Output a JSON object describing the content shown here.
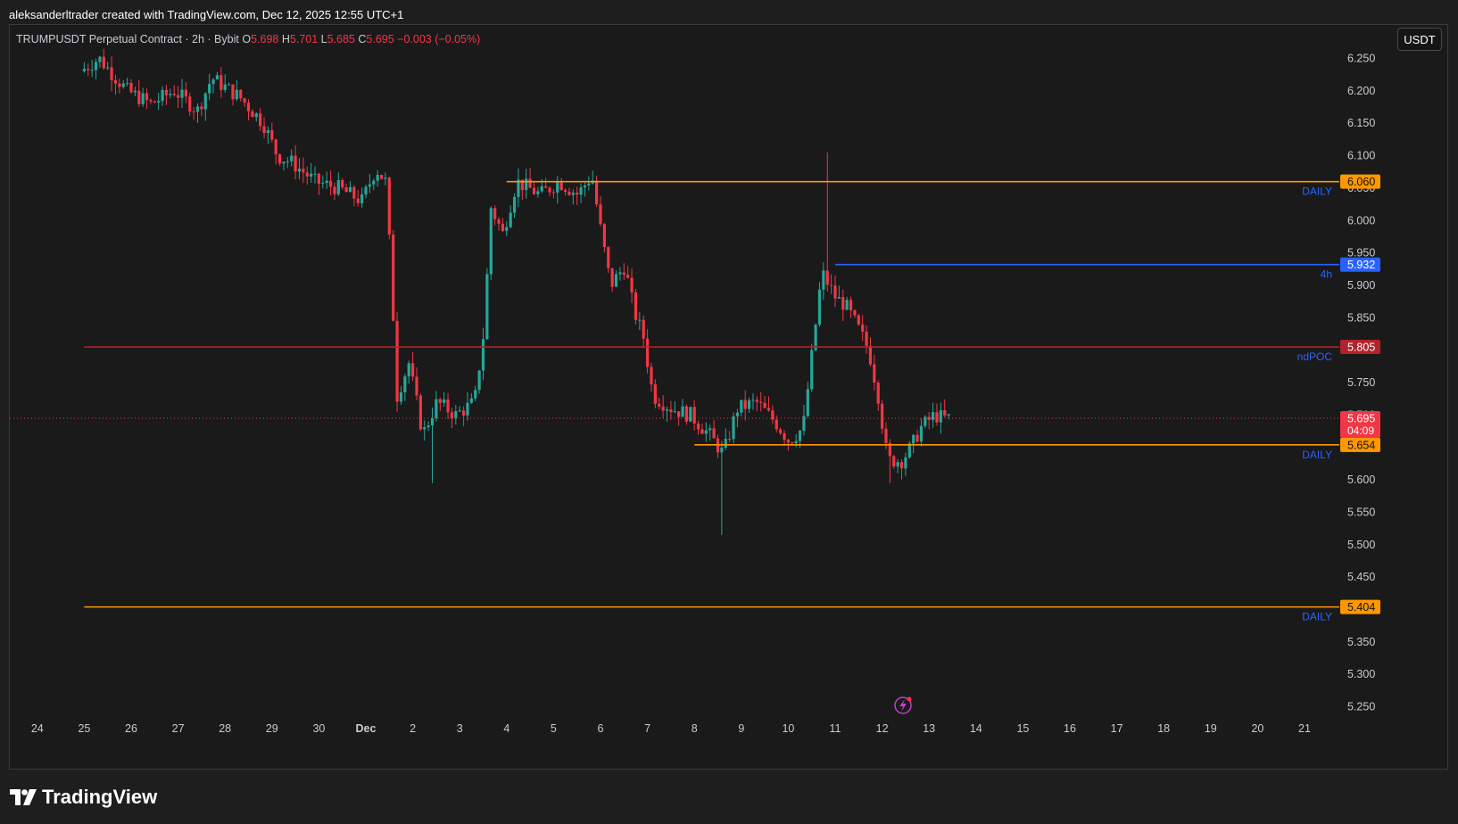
{
  "header": {
    "created_text": "aleksanderltrader created with TradingView.com, Dec 12, 2025 12:55 UTC+1"
  },
  "legend": {
    "symbol": "TRUMPUSDT Perpetual Contract · 2h · Bybit",
    "o_label": "O",
    "o_value": "5.698",
    "h_label": "H",
    "h_value": "5.701",
    "l_label": "L",
    "l_value": "5.685",
    "c_label": "C",
    "c_value": "5.695",
    "change": "−0.003 (−0.05%)"
  },
  "currency_button": "USDT",
  "footer": {
    "brand": "TradingView"
  },
  "colors": {
    "up": "#26a69a",
    "down": "#f23645",
    "daily_line": "#ff9800",
    "h4_line": "#2962ff",
    "ndpoc_line": "#b2222b",
    "label_text": "#2962ff"
  },
  "chart_data": {
    "type": "candlestick",
    "symbol": "TRUMPUSDT",
    "interval": "2h",
    "exchange": "Bybit",
    "ylim": [
      5.2,
      6.28
    ],
    "y_ticks": [
      "6.250",
      "6.200",
      "6.150",
      "6.100",
      "6.050",
      "6.000",
      "5.950",
      "5.900",
      "5.850",
      "5.800",
      "5.750",
      "5.700",
      "5.650",
      "5.600",
      "5.550",
      "5.500",
      "5.450",
      "5.400",
      "5.350",
      "5.300",
      "5.250"
    ],
    "x_ticks": [
      "24",
      "25",
      "26",
      "27",
      "28",
      "29",
      "30",
      "Dec",
      "2",
      "3",
      "4",
      "5",
      "6",
      "7",
      "8",
      "9",
      "10",
      "11",
      "12",
      "13",
      "14",
      "15",
      "16",
      "17",
      "18",
      "19",
      "20",
      "21"
    ],
    "last_price": "5.695",
    "countdown": "04:09",
    "levels": [
      {
        "price": 6.06,
        "label_price": "6.060",
        "tag": "DAILY",
        "color": "#ff9800",
        "start_day": 3.0
      },
      {
        "price": 5.932,
        "label_price": "5.932",
        "tag": "4h",
        "color": "#2962ff",
        "start_day": 10.0
      },
      {
        "price": 5.805,
        "label_price": "5.805",
        "tag": "ndPOC",
        "color": "#b2222b",
        "start_day": -6.0
      },
      {
        "price": 5.654,
        "label_price": "5.654",
        "tag": "DAILY",
        "color": "#ff9800",
        "start_day": 7.0
      },
      {
        "price": 5.404,
        "label_price": "5.404",
        "tag": "DAILY",
        "color": "#ff9800",
        "start_day": -6.0
      }
    ],
    "path_keypoints": [
      [
        -6.0,
        6.23
      ],
      [
        -5.6,
        6.25
      ],
      [
        -5.0,
        6.2
      ],
      [
        -4.5,
        6.18
      ],
      [
        -4.0,
        6.2
      ],
      [
        -3.5,
        6.17
      ],
      [
        -3.2,
        6.22
      ],
      [
        -2.6,
        6.19
      ],
      [
        -2.1,
        6.15
      ],
      [
        -1.8,
        6.1
      ],
      [
        -1.5,
        6.09
      ],
      [
        -1.0,
        6.06
      ],
      [
        -0.5,
        6.05
      ],
      [
        0.0,
        6.03
      ],
      [
        0.3,
        6.08
      ],
      [
        0.5,
        6.06
      ],
      [
        0.6,
        5.95
      ],
      [
        0.75,
        5.73
      ],
      [
        1.0,
        5.78
      ],
      [
        1.3,
        5.67
      ],
      [
        1.6,
        5.72
      ],
      [
        2.0,
        5.7
      ],
      [
        2.4,
        5.72
      ],
      [
        2.6,
        5.83
      ],
      [
        2.75,
        6.02
      ],
      [
        3.0,
        5.98
      ],
      [
        3.3,
        6.06
      ],
      [
        3.8,
        6.04
      ],
      [
        4.2,
        6.06
      ],
      [
        4.6,
        6.04
      ],
      [
        4.9,
        6.07
      ],
      [
        5.1,
        5.98
      ],
      [
        5.3,
        5.9
      ],
      [
        5.6,
        5.93
      ],
      [
        5.8,
        5.86
      ],
      [
        6.0,
        5.82
      ],
      [
        6.2,
        5.73
      ],
      [
        6.6,
        5.71
      ],
      [
        7.0,
        5.7
      ],
      [
        7.4,
        5.67
      ],
      [
        7.7,
        5.64
      ],
      [
        8.0,
        5.71
      ],
      [
        8.4,
        5.72
      ],
      [
        8.8,
        5.69
      ],
      [
        9.1,
        5.66
      ],
      [
        9.4,
        5.68
      ],
      [
        9.6,
        5.8
      ],
      [
        9.8,
        5.92
      ],
      [
        10.1,
        5.88
      ],
      [
        10.3,
        5.87
      ],
      [
        10.6,
        5.83
      ],
      [
        10.8,
        5.8
      ],
      [
        11.0,
        5.73
      ],
      [
        11.2,
        5.63
      ],
      [
        11.5,
        5.63
      ],
      [
        11.7,
        5.65
      ],
      [
        11.9,
        5.68
      ],
      [
        12.2,
        5.7
      ],
      [
        12.4,
        5.695
      ]
    ],
    "wick_extremes": [
      [
        7.6,
        5.515
      ],
      [
        9.8,
        6.105
      ],
      [
        1.4,
        5.595
      ],
      [
        11.2,
        5.595
      ]
    ]
  }
}
